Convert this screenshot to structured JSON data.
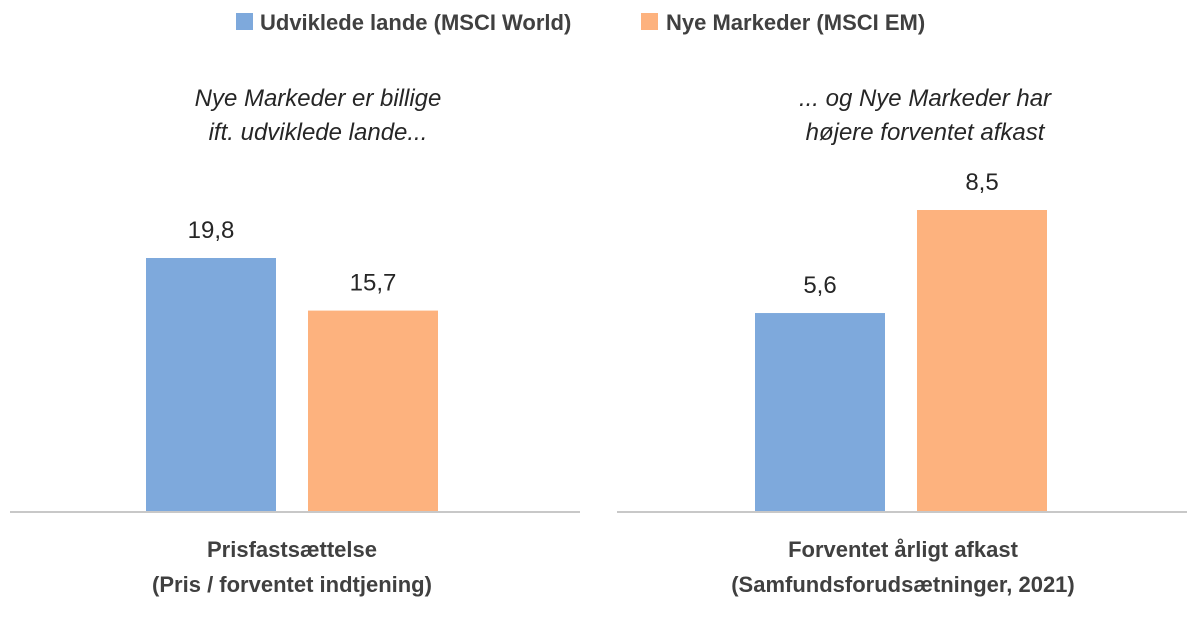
{
  "legend": {
    "series_a": "Udviklede lande (MSCI World)",
    "series_b": "Nye Markeder (MSCI EM)"
  },
  "colors": {
    "series_a": "#7EA9DC",
    "series_b": "#FDB27E",
    "axis": "#C8C8C8"
  },
  "chart_data": [
    {
      "type": "bar",
      "subtitle_lines": [
        "Nye Markeder er billige",
        "ift. udviklede lande..."
      ],
      "category_lines": [
        "Prisfastsættelse",
        "(Pris / forventet indtjening)"
      ],
      "series": [
        {
          "name": "Udviklede lande (MSCI World)",
          "value": 19.8,
          "label": "19,8"
        },
        {
          "name": "Nye Markeder (MSCI EM)",
          "value": 15.7,
          "label": "15,7"
        }
      ],
      "ylim": [
        0,
        19.8
      ]
    },
    {
      "type": "bar",
      "subtitle_lines": [
        "...  og Nye Markeder  har",
        "højere forventet afkast"
      ],
      "category_lines": [
        "Forventet årligt afkast",
        "(Samfundsforudsætninger, 2021)"
      ],
      "series": [
        {
          "name": "Udviklede lande (MSCI World)",
          "value": 5.6,
          "label": "5,6"
        },
        {
          "name": "Nye Markeder (MSCI EM)",
          "value": 8.5,
          "label": "8,5"
        }
      ],
      "ylim": [
        0,
        8.5
      ]
    }
  ]
}
